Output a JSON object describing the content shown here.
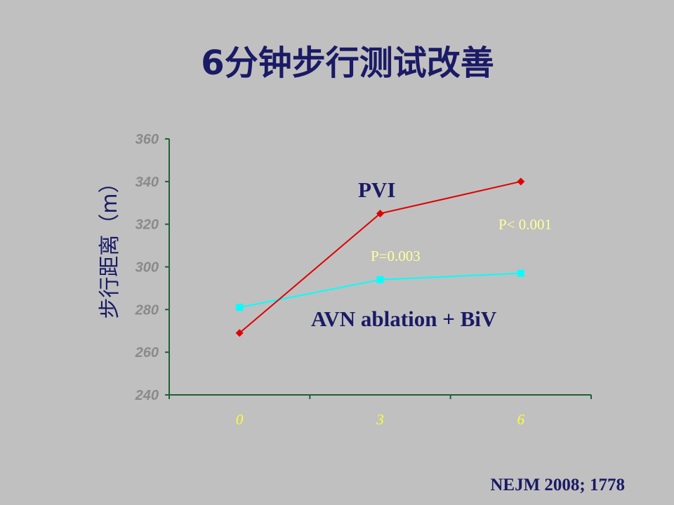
{
  "colors": {
    "background": "#c0c0c0",
    "title": "#1a1a66",
    "text": "#1a1a66",
    "axis": "#1f5f36",
    "tick_label": "#8a8a8a",
    "category_label": "#ffff33",
    "annotation": "#ffff99"
  },
  "chart_data": {
    "type": "line",
    "title": "6分钟步行测试改善",
    "ylabel": "步行距离（m）",
    "categories": [
      "0",
      "3",
      "6"
    ],
    "series": [
      {
        "name": "PVI",
        "values": [
          269,
          325,
          340
        ],
        "color": "#e00000",
        "marker": "diamond"
      },
      {
        "name": "AVN ablation + BiV",
        "values": [
          281,
          294,
          297
        ],
        "color": "#00ffff",
        "marker": "square"
      }
    ],
    "ylim": [
      240,
      360
    ],
    "yticks": [
      240,
      260,
      280,
      300,
      320,
      340,
      360
    ],
    "annotations": [
      {
        "text": "P=0.003"
      },
      {
        "text": "P< 0.001"
      }
    ],
    "grid": false,
    "legend": "inline-labels"
  },
  "citation": "NEJM 2008; 1778"
}
